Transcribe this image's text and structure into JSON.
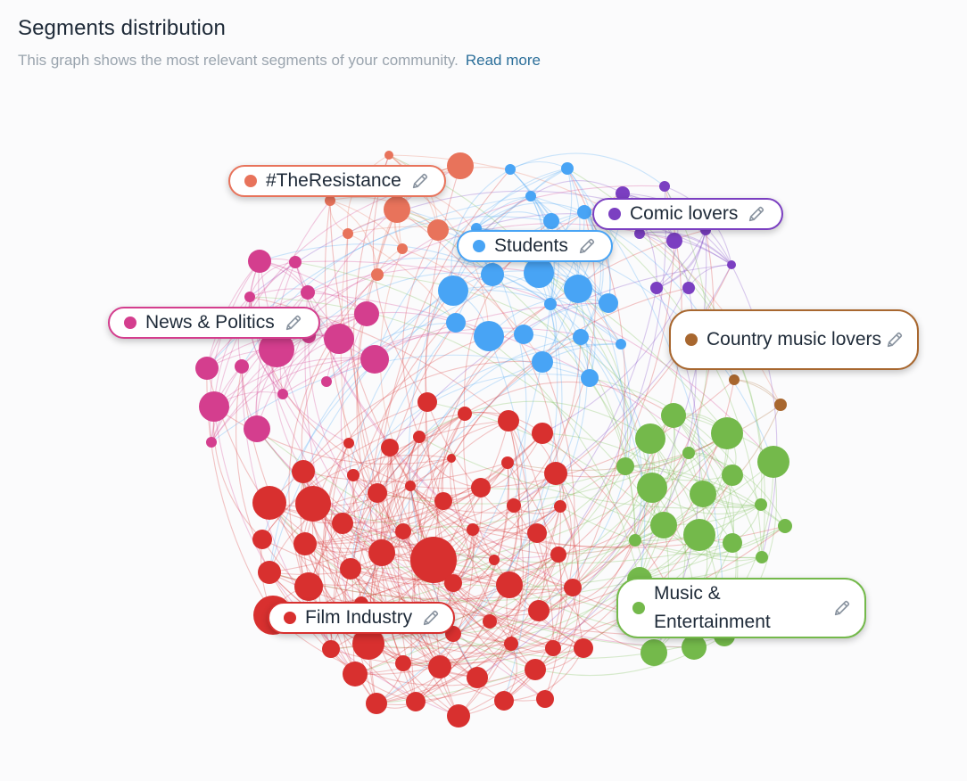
{
  "header": {
    "title": "Segments distribution",
    "subtitle": "This graph shows the most relevant segments of your community.",
    "read_more": "Read more"
  },
  "segments": [
    {
      "id": "resistance",
      "label": "#TheResistance",
      "color": "#e8735b"
    },
    {
      "id": "comic",
      "label": "Comic lovers",
      "color": "#7b3fc1"
    },
    {
      "id": "students",
      "label": "Students",
      "color": "#48a4f5"
    },
    {
      "id": "news",
      "label": "News & Politics",
      "color": "#d43e8e"
    },
    {
      "id": "country",
      "label": "Country music lovers",
      "color": "#a8672f"
    },
    {
      "id": "film",
      "label": "Film Industry",
      "color": "#d8302f"
    },
    {
      "id": "music",
      "label": "Music & Entertainment",
      "color": "#74b94b"
    }
  ],
  "icons": {
    "edit": "pencil-icon"
  }
}
